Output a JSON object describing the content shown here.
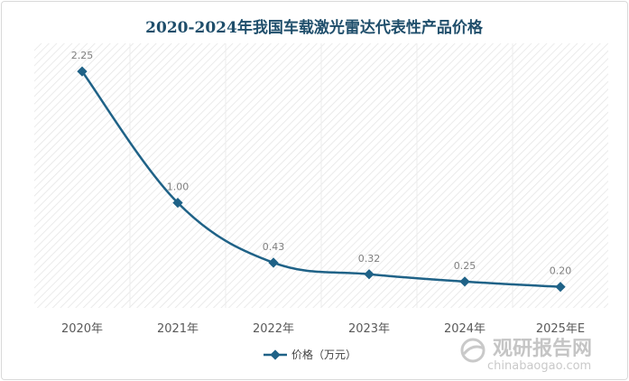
{
  "chart_data": {
    "type": "line",
    "title": "2020-2024年我国车载激光雷达代表性产品价格",
    "categories": [
      "2020年",
      "2021年",
      "2022年",
      "2023年",
      "2024年",
      "2025年E"
    ],
    "series": [
      {
        "name": "价格（万元）",
        "values": [
          2.25,
          1.0,
          0.43,
          0.32,
          0.25,
          0.2
        ],
        "color": "#1f6287"
      }
    ],
    "data_labels": [
      "2.25",
      "1.00",
      "0.43",
      "0.32",
      "0.25",
      "0.20"
    ],
    "ylim": [
      0,
      2.5
    ],
    "grid": "vertical",
    "legend": "bottom",
    "xlabel": "",
    "ylabel": ""
  },
  "watermark": {
    "text": "观研报告网",
    "url": "chinabaogao.com",
    "color": "#bfbfbf"
  }
}
